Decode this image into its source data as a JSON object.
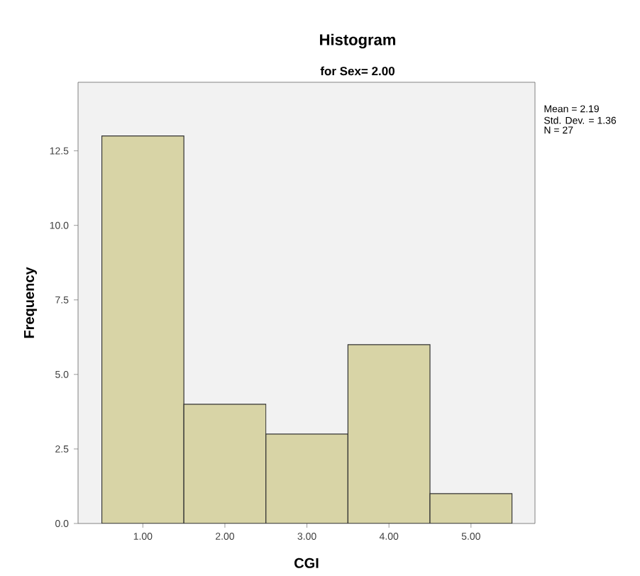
{
  "chart_data": {
    "type": "histogram",
    "title": "Histogram",
    "subtitle": "for Sex= 2.00",
    "xlabel": "CGI",
    "ylabel": "Frequency",
    "bins": [
      0.5,
      1.5,
      2.5,
      3.5,
      4.5,
      5.5
    ],
    "values": [
      13,
      4,
      3,
      6,
      1
    ],
    "color": "#d8d4a6",
    "xlim": [
      0.21,
      5.78
    ],
    "ylim": [
      0,
      14.8
    ],
    "xticks": [
      {
        "value": 1,
        "label": "1.00"
      },
      {
        "value": 2,
        "label": "2.00"
      },
      {
        "value": 3,
        "label": "3.00"
      },
      {
        "value": 4,
        "label": "4.00"
      },
      {
        "value": 5,
        "label": "5.00"
      }
    ],
    "yticks": [
      {
        "value": 0,
        "label": "0.0"
      },
      {
        "value": 2.5,
        "label": "2.5"
      },
      {
        "value": 5,
        "label": "5.0"
      },
      {
        "value": 7.5,
        "label": "7.5"
      },
      {
        "value": 10,
        "label": "10.0"
      },
      {
        "value": 12.5,
        "label": "12.5"
      }
    ],
    "annotations": [
      "Mean = 2.19",
      "Std. Dev. = 1.36",
      "N = 27"
    ]
  }
}
